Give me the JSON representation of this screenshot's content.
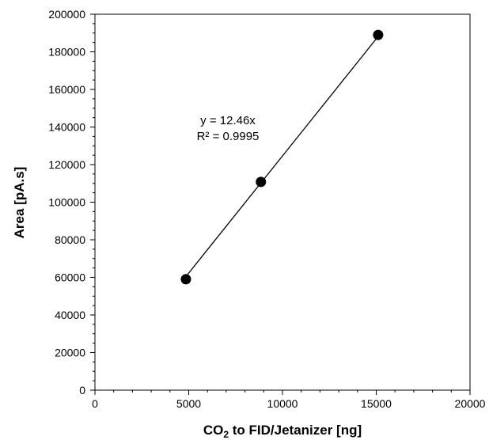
{
  "chart_data": {
    "type": "scatter",
    "title": "",
    "xlabel": {
      "main": "CO",
      "subscript": "2",
      "rest": " to FID/Jetanizer [ng]"
    },
    "ylabel": "Area [pA.s]",
    "xlim": [
      0,
      20000
    ],
    "ylim": [
      0,
      200000
    ],
    "xticks": [
      0,
      5000,
      10000,
      15000,
      20000
    ],
    "yticks": [
      0,
      20000,
      40000,
      60000,
      80000,
      100000,
      120000,
      140000,
      160000,
      180000,
      200000
    ],
    "grid": false,
    "legend": "none",
    "series": [
      {
        "points": [
          {
            "x": 4850,
            "y": 59000
          },
          {
            "x": 8850,
            "y": 110800
          },
          {
            "x": 15100,
            "y": 189000
          }
        ],
        "marker_color": "#000000"
      }
    ],
    "trendline": {
      "slope": 12.46,
      "intercept": 0,
      "x_range": [
        4850,
        15100
      ],
      "color": "#000000"
    },
    "annotations": {
      "equation": "y = 12.46x",
      "r_squared": "R² = 0.9995"
    }
  }
}
